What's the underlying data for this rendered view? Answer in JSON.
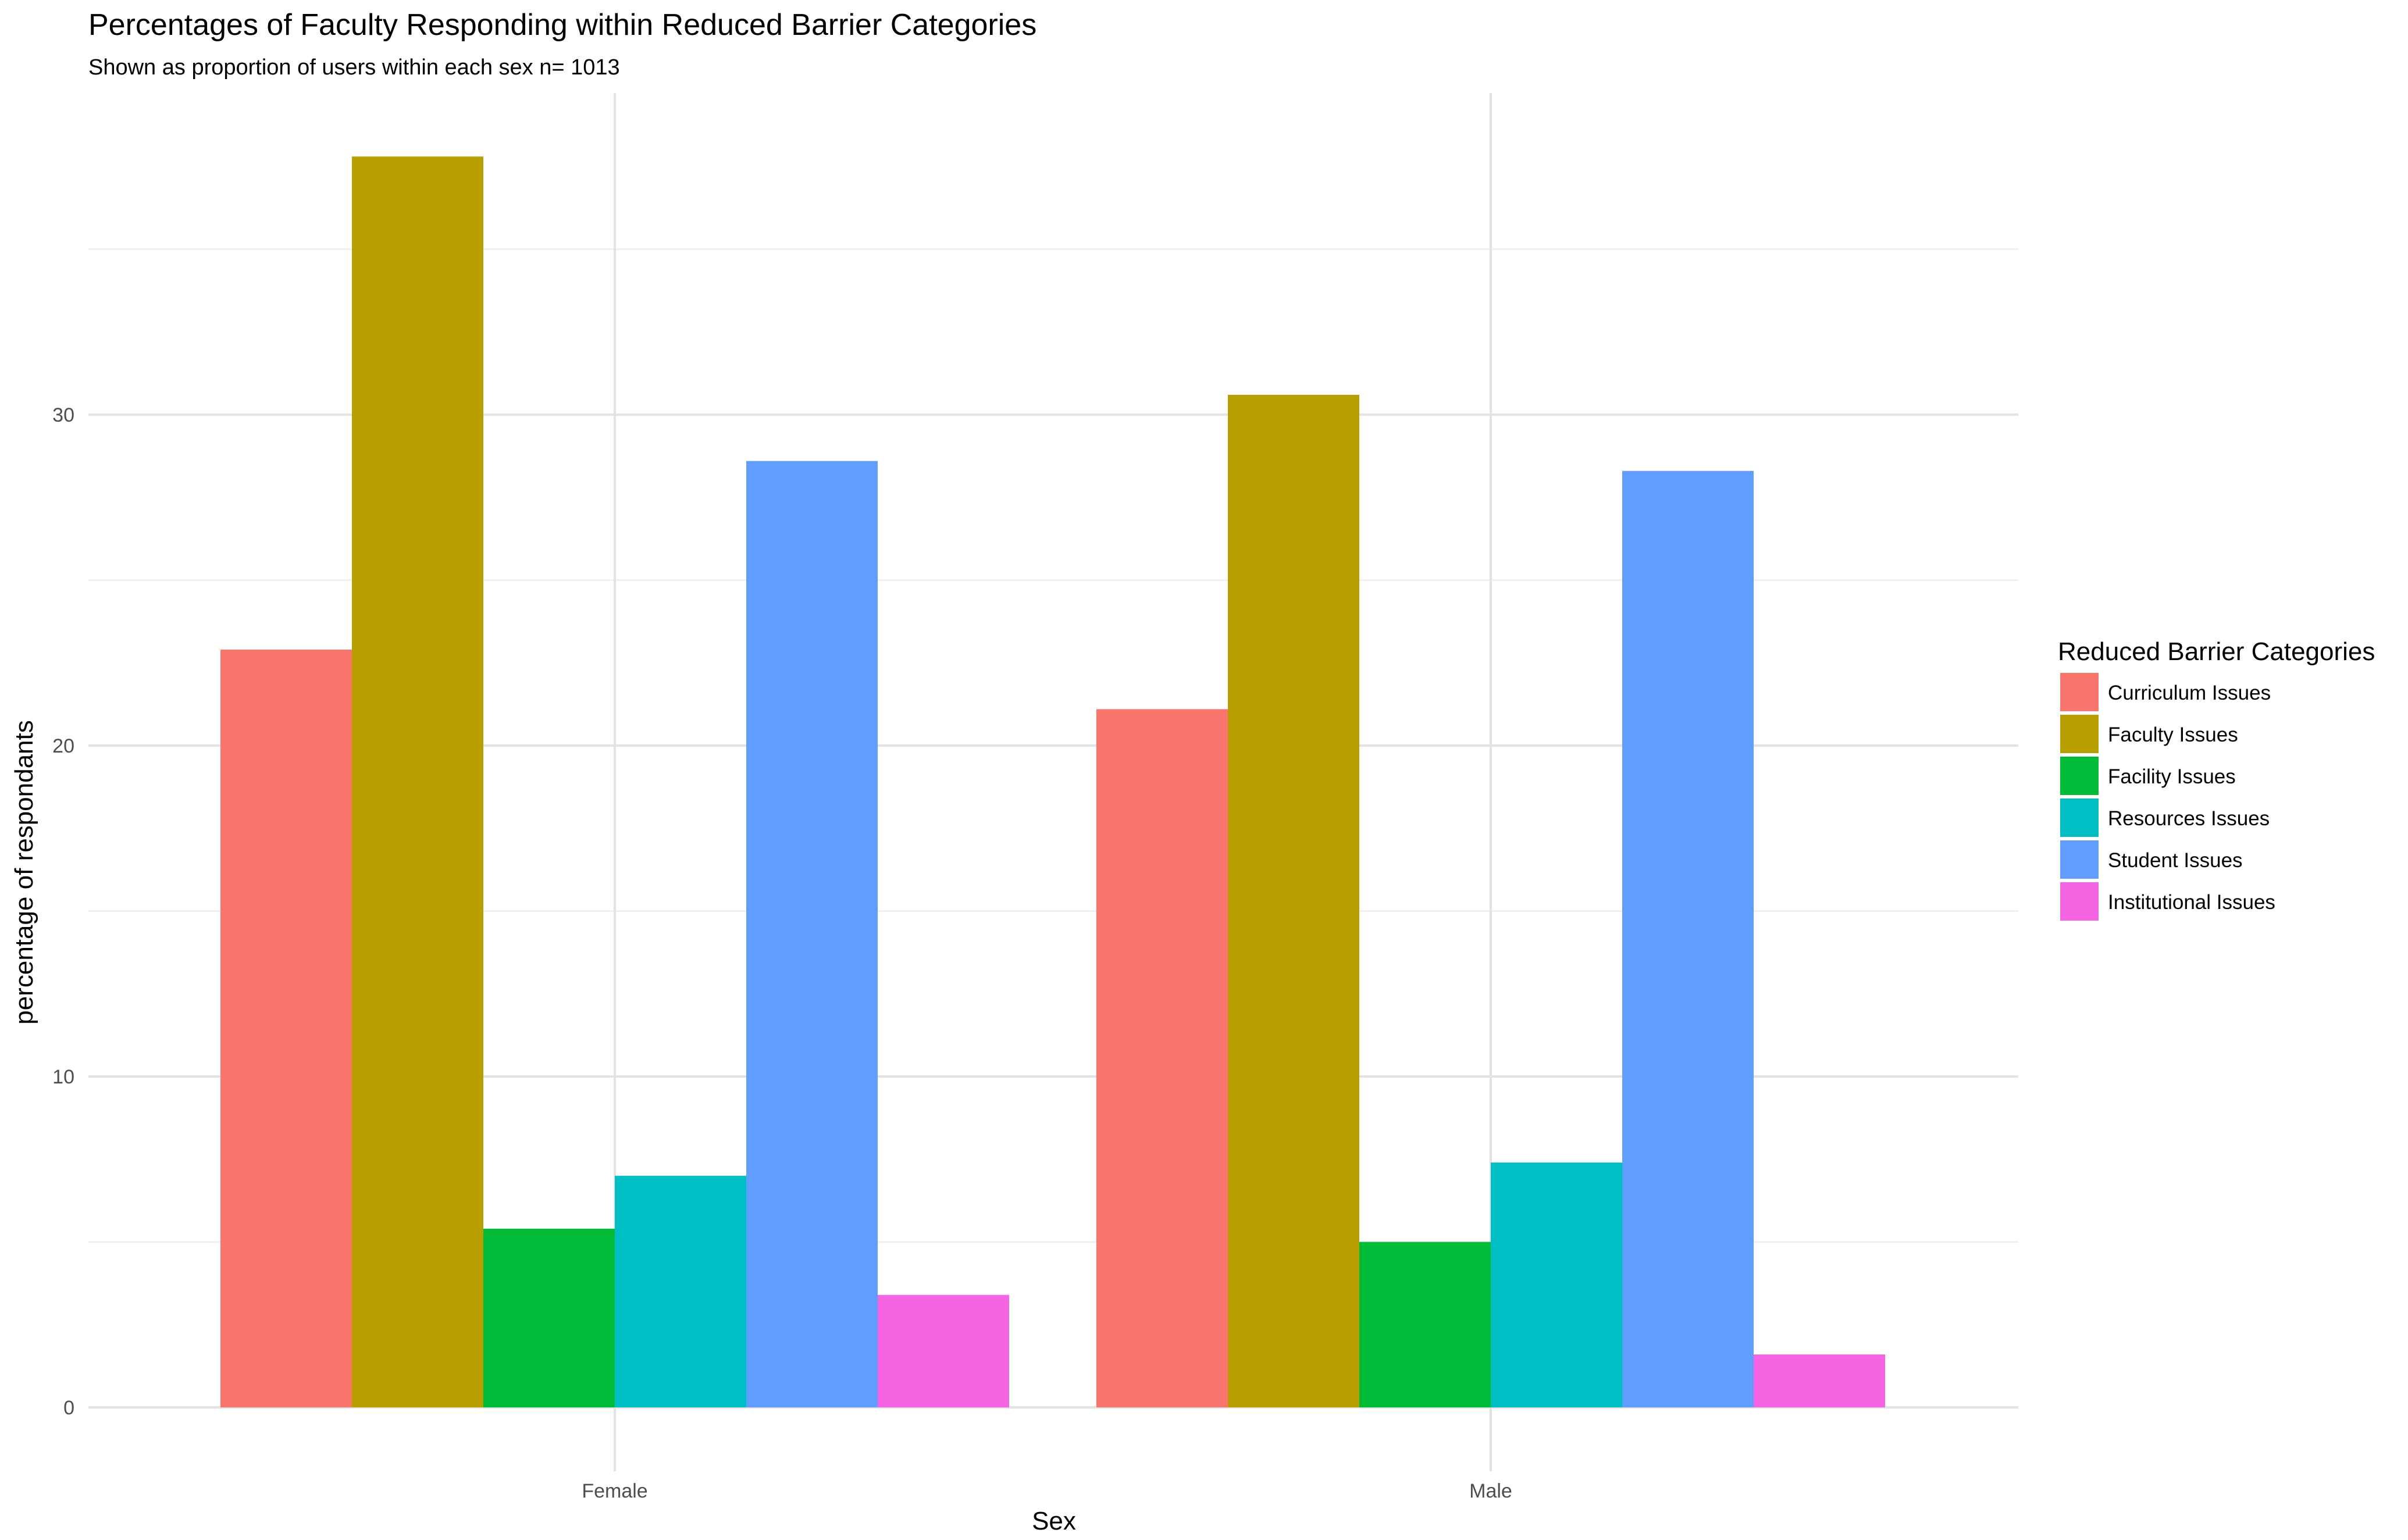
{
  "chart_data": {
    "type": "bar",
    "title": "Percentages of Faculty Responding within Reduced Barrier Categories",
    "subtitle": "Shown as proportion of users within each sex n= 1013",
    "xlabel": "Sex",
    "ylabel": "percentage of respondants",
    "categories": [
      "Female",
      "Male"
    ],
    "yticks": [
      "0",
      "10",
      "20",
      "30"
    ],
    "ylim": [
      0,
      40
    ],
    "grid": true,
    "legend": {
      "title": "Reduced Barrier Categories",
      "position": "right"
    },
    "series": [
      {
        "name": "Curriculum Issues",
        "color": "#F8766D",
        "values": [
          22.9,
          21.1
        ]
      },
      {
        "name": "Faculty Issues",
        "color": "#B79F00",
        "values": [
          37.8,
          30.6
        ]
      },
      {
        "name": "Facility Issues",
        "color": "#00BA38",
        "values": [
          5.4,
          5.0
        ]
      },
      {
        "name": "Resources Issues",
        "color": "#00BFC4",
        "values": [
          7.0,
          7.4
        ]
      },
      {
        "name": "Student Issues",
        "color": "#619CFF",
        "values": [
          28.6,
          28.3
        ]
      },
      {
        "name": "Institutional Issues",
        "color": "#F564E3",
        "values": [
          3.4,
          1.6
        ]
      }
    ]
  }
}
